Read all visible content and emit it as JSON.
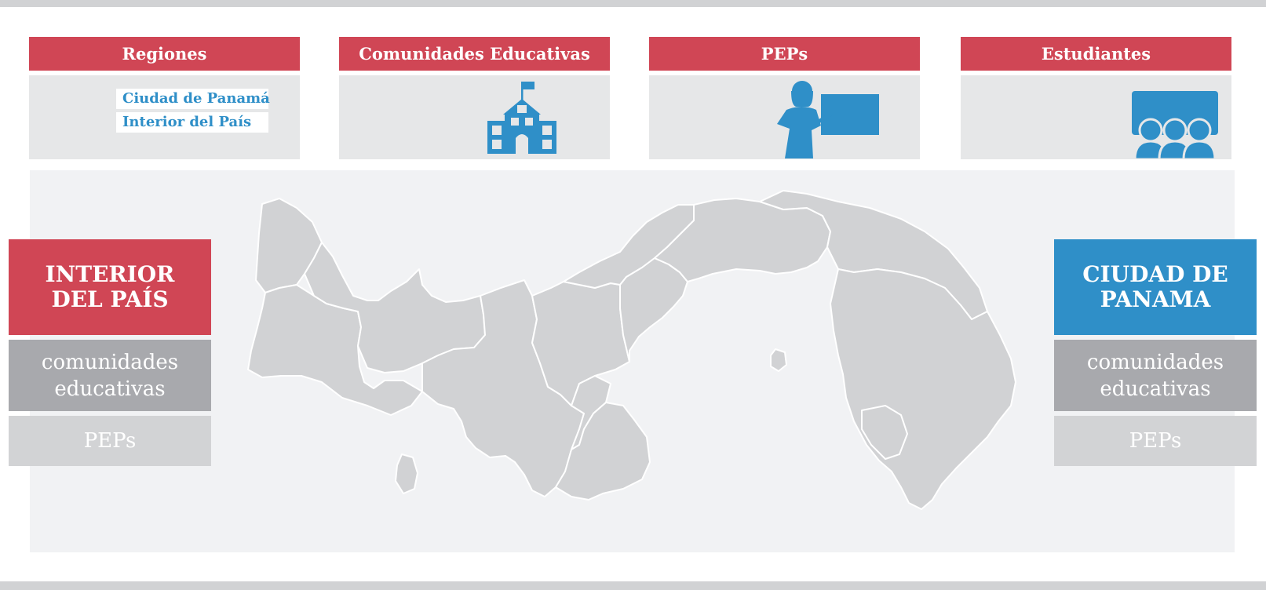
{
  "colors": {
    "accent_red": "#d04655",
    "accent_blue": "#2f8fc8",
    "map_fill": "#d1d2d4",
    "panel_bg": "#f1f2f4"
  },
  "stats": [
    {
      "header": "Regiones",
      "icon": "map-regions"
    },
    {
      "header": "Comunidades Educativas",
      "icon": "school-building-icon"
    },
    {
      "header": "PEPs",
      "icon": "teacher-at-board-icon"
    },
    {
      "header": "Estudiantes",
      "icon": "students-icon"
    }
  ],
  "regions": {
    "items": [
      "Ciudad de Panamá",
      "Interior del País"
    ]
  },
  "map": {
    "name": "Panamá",
    "region_count": 12
  },
  "interior": {
    "title_line1": "INTERIOR",
    "title_line2": "DEL PAÍS",
    "metric_line1": "comunidades",
    "metric_line2": "educativas",
    "peps_label": "PEPs"
  },
  "ciudad": {
    "title_line1": "CIUDAD DE",
    "title_line2": "PANAMA",
    "metric_line1": "comunidades",
    "metric_line2": "educativas",
    "peps_label": "PEPs"
  }
}
